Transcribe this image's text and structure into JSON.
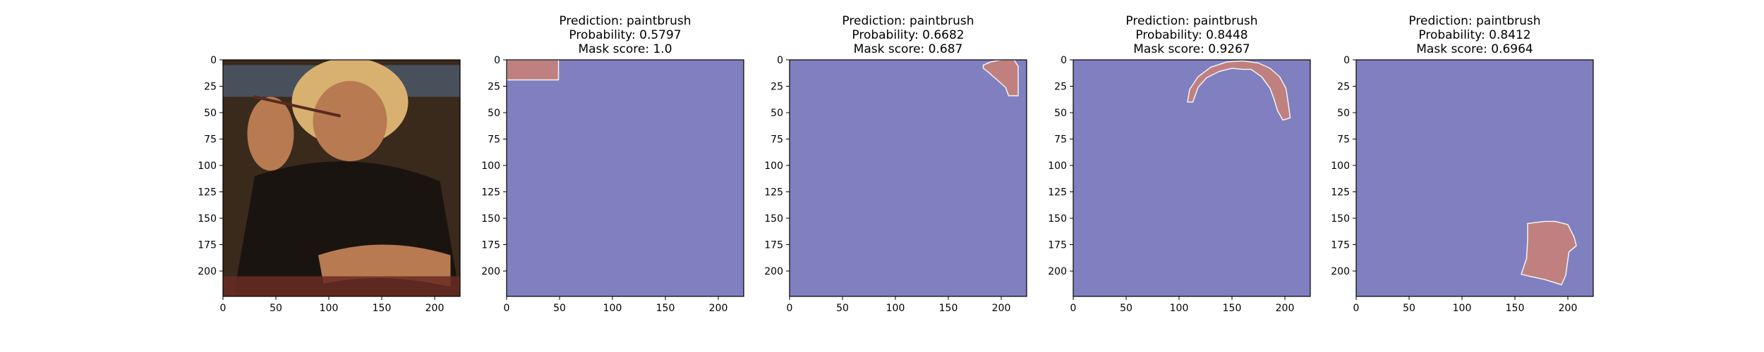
{
  "chart_data": {
    "type": "heatmap",
    "axis_range": [
      0,
      224
    ],
    "xticks": [
      "0",
      "50",
      "100",
      "150",
      "200"
    ],
    "yticks": [
      "0",
      "25",
      "50",
      "75",
      "100",
      "125",
      "150",
      "175",
      "200"
    ],
    "colors": {
      "background": "#8080c0",
      "mask": "#c08080",
      "mask_edge": "#f2f2f2",
      "axes_frame": "#000000",
      "photo_background": "#3a2a1c",
      "photo_subject": "#b87a50",
      "photo_hair": "#d8b070",
      "photo_clothing": "#1a1410"
    },
    "panels": [
      {
        "kind": "image",
        "content": "input photo",
        "title": []
      },
      {
        "kind": "mask",
        "title": [
          "Prediction: paintbrush",
          "Probability: 0.5797",
          "Mask score: 1.0"
        ],
        "prediction": "paintbrush",
        "probability": 0.5797,
        "mask_score": 1.0,
        "mask_region": [
          [
            0,
            0
          ],
          [
            49,
            0
          ],
          [
            49,
            19
          ],
          [
            0,
            19
          ]
        ]
      },
      {
        "kind": "mask",
        "title": [
          "Prediction: paintbrush",
          "Probability: 0.6682",
          "Mask score: 0.687"
        ],
        "prediction": "paintbrush",
        "probability": 0.6682,
        "mask_score": 0.687,
        "mask_region": [
          [
            183,
            5
          ],
          [
            190,
            2
          ],
          [
            200,
            0
          ],
          [
            212,
            0
          ],
          [
            216,
            6
          ],
          [
            216,
            34
          ],
          [
            207,
            34
          ],
          [
            204,
            26
          ],
          [
            195,
            18
          ],
          [
            187,
            11
          ],
          [
            183,
            8
          ]
        ]
      },
      {
        "kind": "mask",
        "title": [
          "Prediction: paintbrush",
          "Probability: 0.8448",
          "Mask score: 0.9267"
        ],
        "prediction": "paintbrush",
        "probability": 0.8448,
        "mask_score": 0.9267,
        "mask_region": [
          [
            108,
            40
          ],
          [
            110,
            28
          ],
          [
            118,
            16
          ],
          [
            130,
            7
          ],
          [
            145,
            2
          ],
          [
            160,
            1
          ],
          [
            175,
            3
          ],
          [
            186,
            8
          ],
          [
            195,
            16
          ],
          [
            201,
            27
          ],
          [
            203,
            40
          ],
          [
            205,
            55
          ],
          [
            198,
            57
          ],
          [
            193,
            48
          ],
          [
            190,
            38
          ],
          [
            186,
            27
          ],
          [
            178,
            16
          ],
          [
            168,
            9
          ],
          [
            160,
            9
          ],
          [
            150,
            8
          ],
          [
            138,
            11
          ],
          [
            126,
            17
          ],
          [
            118,
            26
          ],
          [
            113,
            40
          ]
        ]
      },
      {
        "kind": "mask",
        "title": [
          "Prediction: paintbrush",
          "Probability: 0.8412",
          "Mask score: 0.6964"
        ],
        "prediction": "paintbrush",
        "probability": 0.8412,
        "mask_score": 0.6964,
        "mask_region": [
          [
            162,
            155
          ],
          [
            178,
            153
          ],
          [
            188,
            153
          ],
          [
            200,
            156
          ],
          [
            206,
            168
          ],
          [
            208,
            176
          ],
          [
            201,
            182
          ],
          [
            198,
            204
          ],
          [
            194,
            213
          ],
          [
            178,
            208
          ],
          [
            164,
            205
          ],
          [
            156,
            203
          ],
          [
            161,
            188
          ],
          [
            162,
            170
          ]
        ]
      }
    ]
  }
}
